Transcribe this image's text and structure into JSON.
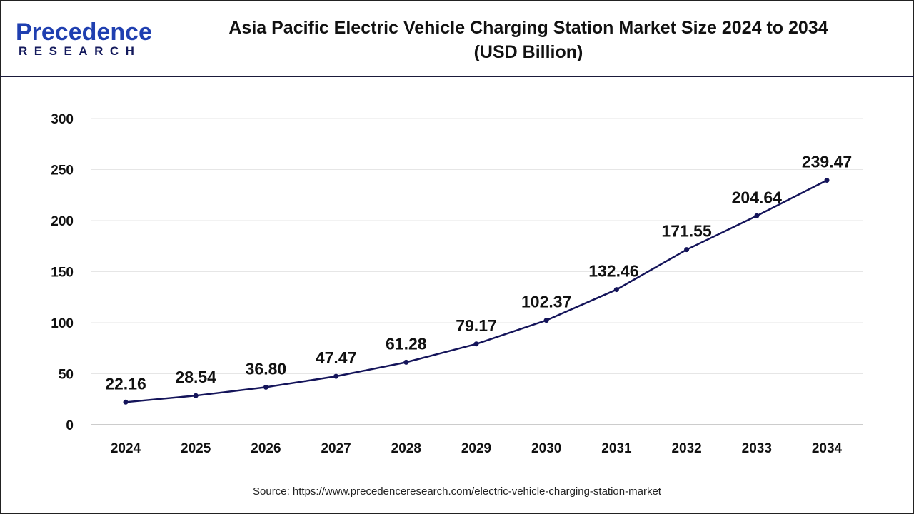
{
  "logo": {
    "text_top": "Precedence",
    "text_bottom": "RESEARCH"
  },
  "title_line1": "Asia Pacific Electric Vehicle Charging Station Market Size 2024 to 2034",
  "title_line2": "(USD Billion)",
  "source": "Source: https://www.precedenceresearch.com/electric-vehicle-charging-station-market",
  "chart_data": {
    "type": "line",
    "title": "Asia Pacific Electric Vehicle Charging Station Market Size 2024 to 2034 (USD Billion)",
    "categories": [
      "2024",
      "2025",
      "2026",
      "2027",
      "2028",
      "2029",
      "2030",
      "2031",
      "2032",
      "2033",
      "2034"
    ],
    "values": [
      22.16,
      28.54,
      36.8,
      47.47,
      61.28,
      79.17,
      102.37,
      132.46,
      171.55,
      204.64,
      239.47
    ],
    "labels": [
      "22.16",
      "28.54",
      "36.80",
      "47.47",
      "61.28",
      "79.17",
      "102.37",
      "132.46",
      "171.55",
      "204.64",
      "239.47"
    ],
    "ylim": [
      0,
      300
    ],
    "yticks": [
      0,
      50,
      100,
      150,
      200,
      250,
      300
    ],
    "grid": true,
    "line_color": "#14145a",
    "xlabel": "",
    "ylabel": ""
  }
}
